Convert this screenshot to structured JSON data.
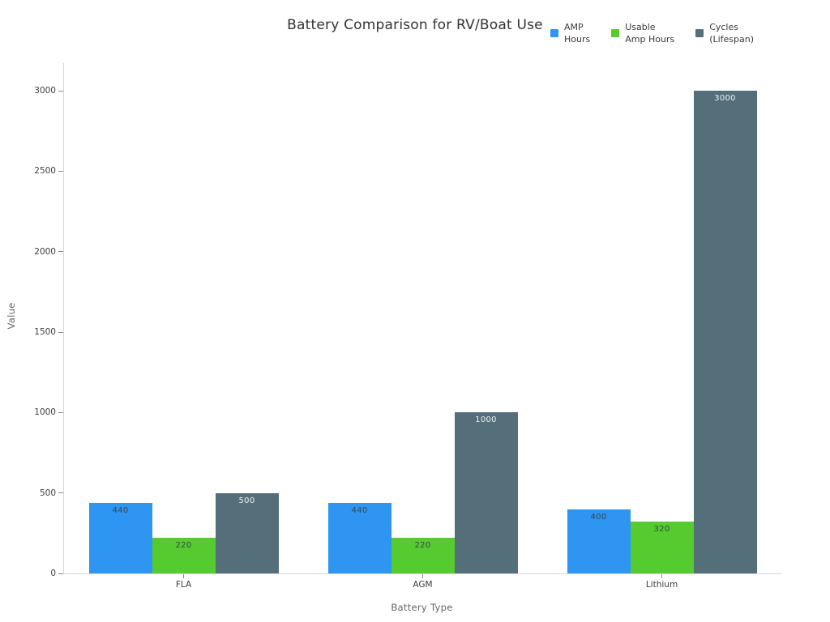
{
  "chart_data": {
    "type": "bar",
    "title": "Battery Comparison for RV/Boat Use",
    "xlabel": "Battery Type",
    "ylabel": "Value",
    "categories": [
      "FLA",
      "AGM",
      "Lithium"
    ],
    "series": [
      {
        "name": "AMP Hours",
        "legend_lines": [
          "AMP",
          "Hours"
        ],
        "color": "#2E95F2",
        "label_color": "#37474F",
        "values": [
          440,
          440,
          400
        ]
      },
      {
        "name": "Usable Amp Hours",
        "legend_lines": [
          "Usable",
          "Amp Hours"
        ],
        "color": "#55CB2F",
        "label_color": "#37474F",
        "values": [
          220,
          220,
          320
        ]
      },
      {
        "name": "Cycles (Lifespan)",
        "legend_lines": [
          "Cycles",
          "(Lifespan)"
        ],
        "color": "#546E7A",
        "label_color": "#EFF3F5",
        "values": [
          500,
          1000,
          3000
        ]
      }
    ],
    "ylim": [
      0,
      3000
    ],
    "yticks": [
      0,
      500,
      1000,
      1500,
      2000,
      2500,
      3000
    ],
    "grid": false,
    "legend_position": "top-right",
    "bar_value_labels": true
  },
  "style": {
    "background": "#FFFFFF",
    "axis_line_color": "#D8D8D8",
    "tick_color": "#8A8A8A",
    "tick_label_color": "#3D3D3D",
    "axis_title_color": "#666666",
    "title_color": "#323232"
  }
}
